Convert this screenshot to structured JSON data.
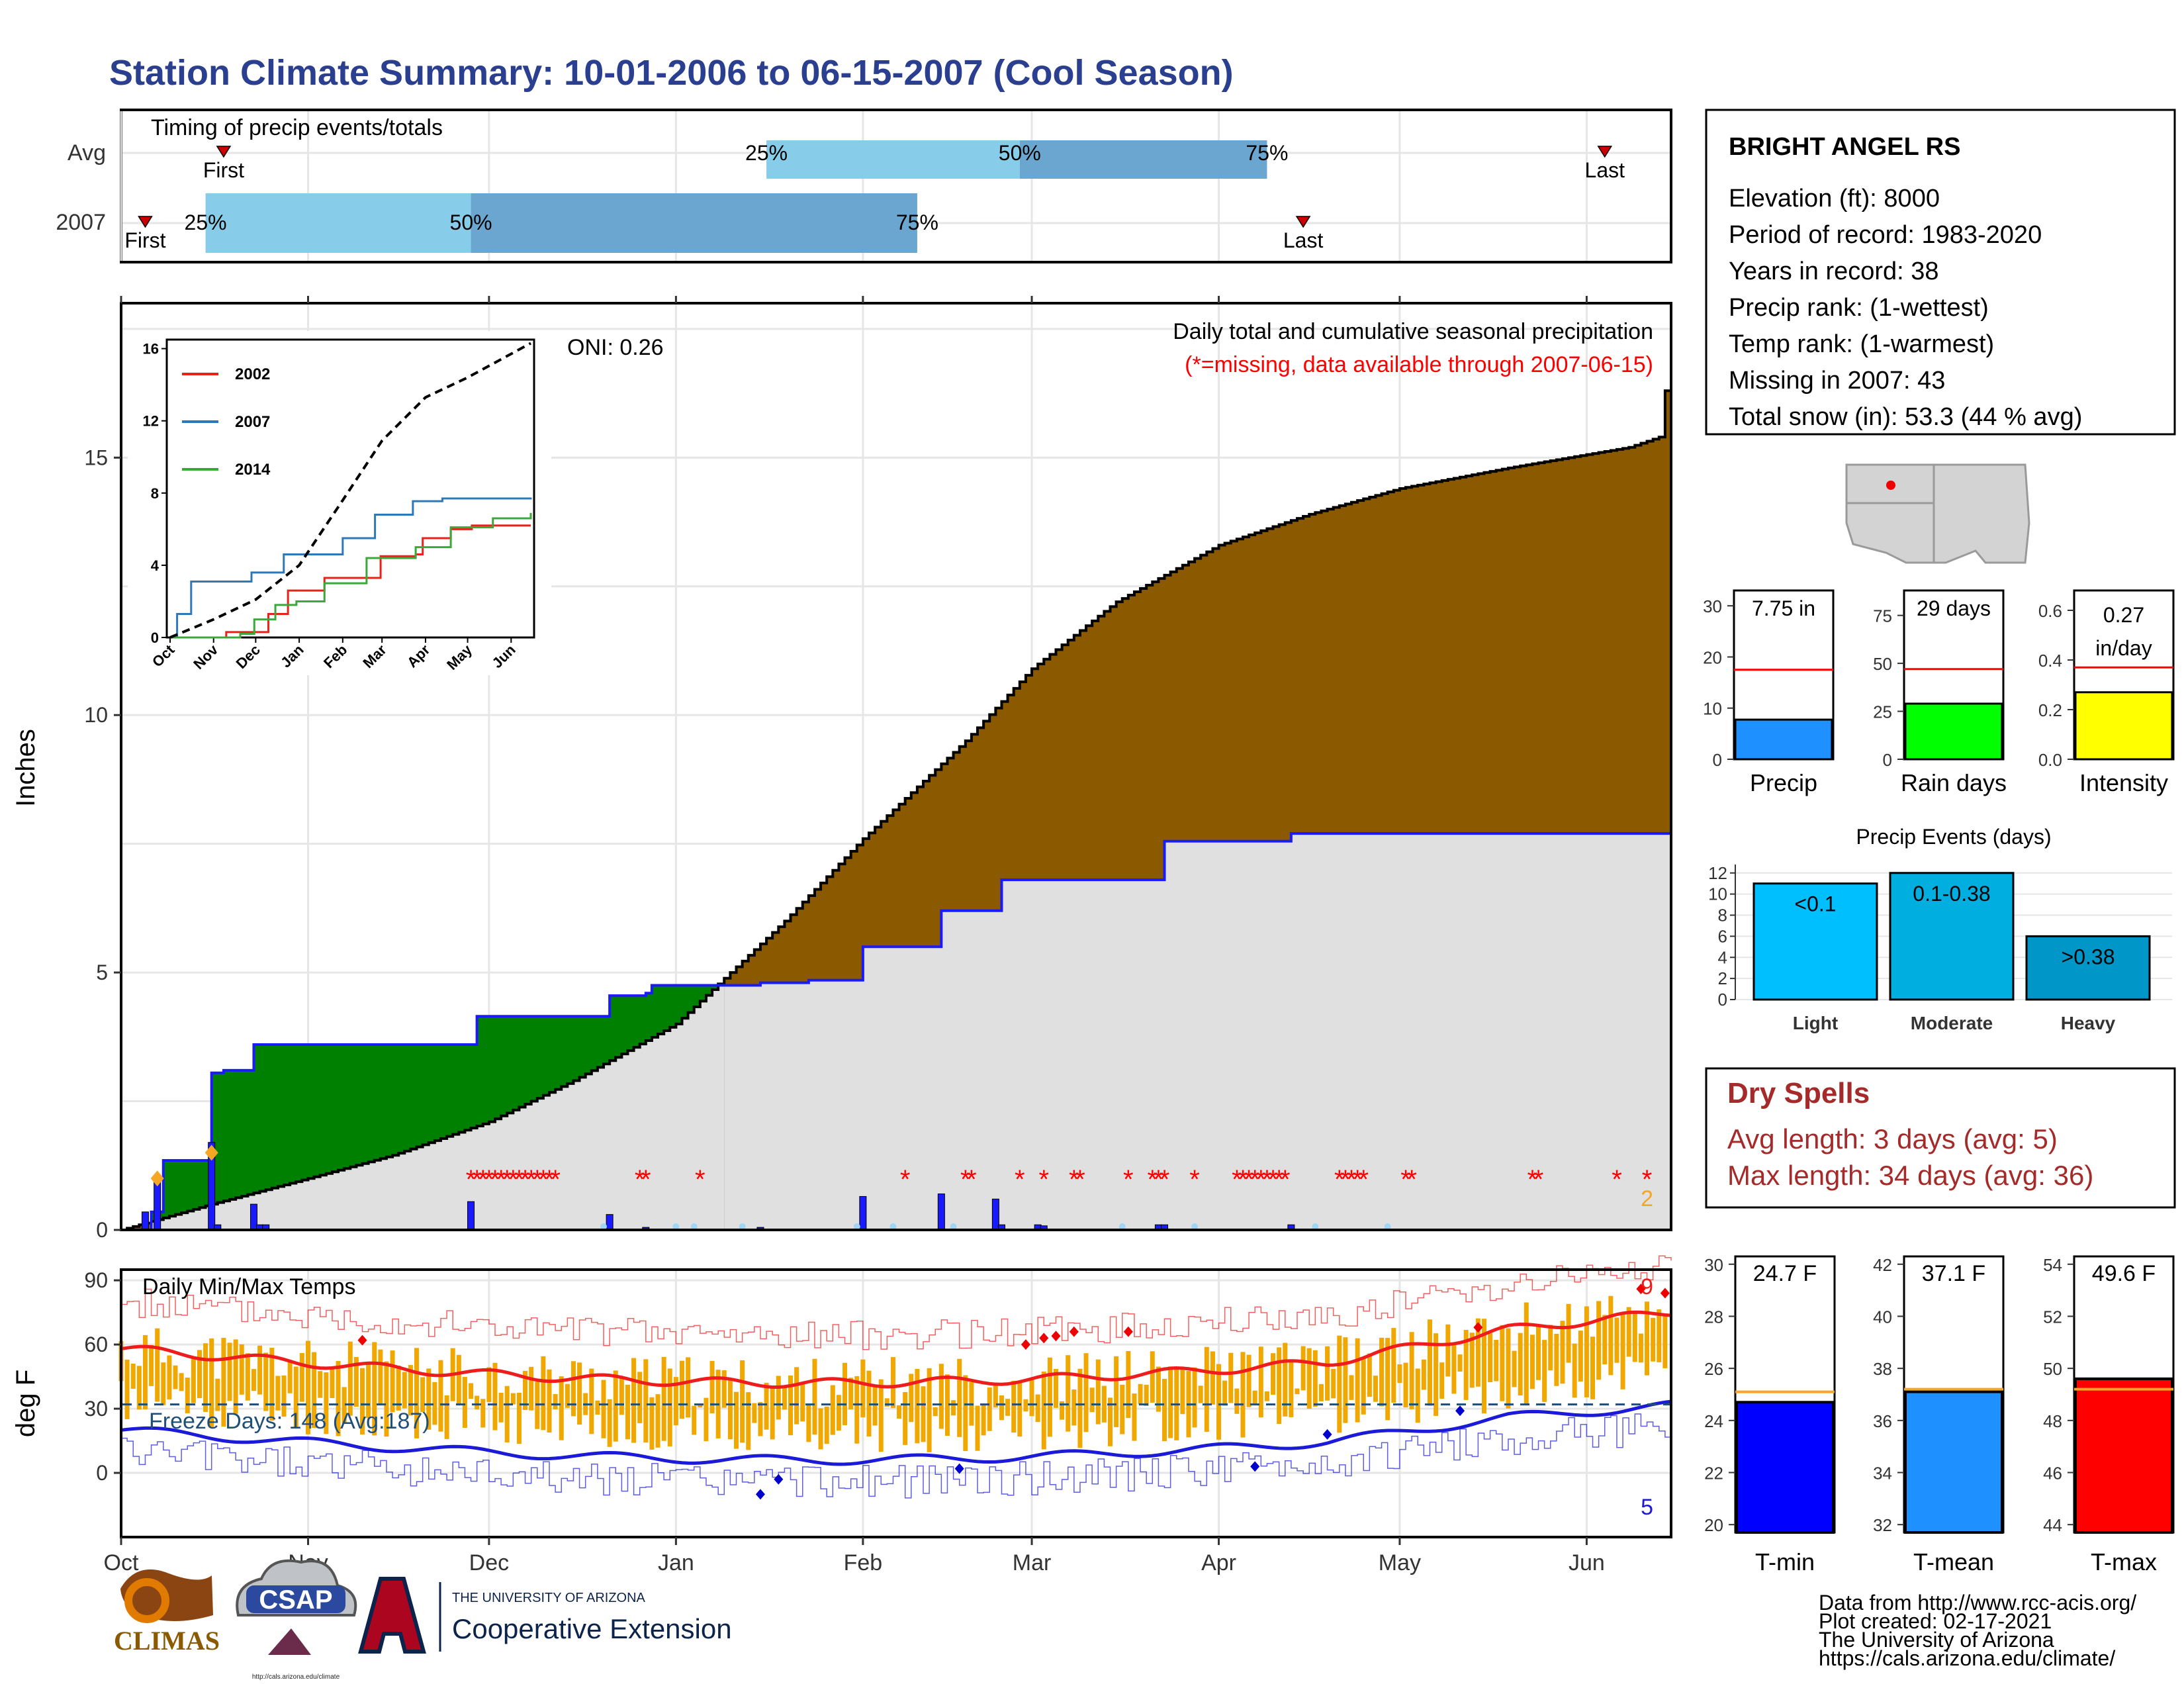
{
  "header": {
    "title": "Station Climate Summary: 10-01-2006 to 06-15-2007 (Cool Season)"
  },
  "timing": {
    "label": "Timing of precip events/totals",
    "rows": [
      {
        "name": "Avg",
        "first_day": 17,
        "q25_day": 107,
        "q50_day": 149,
        "q75_day": 190,
        "last_day": 246
      },
      {
        "name": "2007",
        "first_day": 4,
        "q25_day": 14,
        "q50_day": 58,
        "q75_day": 132,
        "last_day": 196
      }
    ],
    "first_label": "First",
    "last_label": "Last",
    "q_labels": [
      "25%",
      "50%",
      "75%"
    ],
    "colors": {
      "light": "#87cde9",
      "dark": "#6aa6cf",
      "marker": "#cc0000"
    }
  },
  "main_plot": {
    "ylabel": "Inches",
    "yticks": [
      0,
      5,
      10,
      15
    ],
    "ylim": [
      0,
      18
    ],
    "caption": "Daily total and cumulative seasonal precipitation",
    "missing_note": "(*=missing, data available through 2007-06-15)",
    "oni": "ONI: 0.26",
    "corner_value": "2",
    "xticks": [
      "Oct",
      "Nov",
      "Dec",
      "Jan",
      "Feb",
      "Mar",
      "Apr",
      "May",
      "Jun"
    ],
    "colors": {
      "avg_fill": "#8b5a00",
      "obs_fill": "#e0e0e0",
      "above_fill": "#008000",
      "obs_line": "#1a1aff",
      "missing": "#ff0000",
      "diamond": "#f5a623"
    }
  },
  "inset": {
    "yticks": [
      0,
      4,
      8,
      12,
      16
    ],
    "xticks": [
      "Oct",
      "Nov",
      "Dec",
      "Jan",
      "Feb",
      "Mar",
      "Apr",
      "May",
      "Jun"
    ],
    "legend": [
      {
        "name": "2002",
        "color": "#e8211b"
      },
      {
        "name": "2007",
        "color": "#2f78b7"
      },
      {
        "name": "2014",
        "color": "#3aa83a"
      }
    ]
  },
  "temps": {
    "label": "Daily Min/Max Temps",
    "ylabel": "deg F",
    "yticks": [
      0,
      30,
      60,
      90
    ],
    "freeze_label": "Freeze Days: 148 (Avg:187)",
    "top_count": "9",
    "bottom_count": "5",
    "colors": {
      "bar": "#f0a800",
      "max_line": "#ee1c1c",
      "min_line": "#1a1ad8",
      "freeze": "#1f4e79"
    }
  },
  "station": {
    "name": "BRIGHT ANGEL RS",
    "lines": [
      "Elevation (ft): 8000",
      "Period of record: 1983-2020",
      "Years in record: 38",
      "Precip rank:  (1-wettest)",
      "Temp rank:  (1-warmest)",
      "Missing in 2007: 43",
      "Total snow (in): 53.3 (44 % avg)"
    ]
  },
  "mini_bars": [
    {
      "label": "Precip",
      "value_text": "7.75 in",
      "value": 7.75,
      "avg": 17.5,
      "yticks": [
        "0",
        "10",
        "20",
        "30"
      ],
      "ymax": 33,
      "color": "#1e90ff"
    },
    {
      "label": "Rain days",
      "value_text": "29 days",
      "value": 29,
      "avg": 47,
      "yticks": [
        "0",
        "25",
        "50",
        "75"
      ],
      "ymax": 88,
      "color": "#00ff00"
    },
    {
      "label": "Intensity",
      "value_text": "0.27 in/day",
      "value_lines": [
        "0.27",
        "in/day"
      ],
      "value": 0.27,
      "avg": 0.37,
      "yticks": [
        "0.0",
        "0.2",
        "0.4",
        "0.6"
      ],
      "ymax": 0.68,
      "color": "#ffff00"
    }
  ],
  "precip_events": {
    "title": "Precip Events (days)",
    "yticks": [
      "0",
      "2",
      "4",
      "6",
      "8",
      "10",
      "12"
    ],
    "bars": [
      {
        "category": "Light",
        "label": "<0.1",
        "value": 11,
        "color": "#00bfff"
      },
      {
        "category": "Moderate",
        "label": "0.1-0.38",
        "value": 12,
        "color": "#00aee0"
      },
      {
        "category": "Heavy",
        "label": ">0.38",
        "value": 6,
        "color": "#0097c8"
      }
    ]
  },
  "dry_spells": {
    "title": "Dry Spells",
    "avg_line": "Avg length: 3 days (avg: 5)",
    "max_line": "Max length: 34 days (avg: 36)"
  },
  "temp_bars": [
    {
      "label": "T-min",
      "value_text": "24.7 F",
      "value": 24.7,
      "avg": 25.1,
      "yticks": [
        "20",
        "22",
        "24",
        "26",
        "28",
        "30"
      ],
      "ymin": 19.7,
      "ymax": 30.3,
      "color": "#0000ff"
    },
    {
      "label": "T-mean",
      "value_text": "37.1 F",
      "value": 37.1,
      "avg": 37.2,
      "yticks": [
        "32",
        "34",
        "36",
        "38",
        "40",
        "42"
      ],
      "ymin": 31.7,
      "ymax": 42.3,
      "color": "#1e90ff"
    },
    {
      "label": "T-max",
      "value_text": "49.6 F",
      "value": 49.6,
      "avg": 49.2,
      "yticks": [
        "44",
        "46",
        "48",
        "50",
        "52",
        "54"
      ],
      "ymin": 43.7,
      "ymax": 54.3,
      "color": "#ff0000"
    }
  ],
  "footer": {
    "credits": [
      "Data from http://www.rcc-acis.org/",
      "Plot created: 02-17-2021",
      "The University of Arizona",
      "https://cals.arizona.edu/climate/"
    ],
    "logos": {
      "climas": "CLIMAS",
      "csap": "CSAP",
      "csap_url": "http://cals.arizona.edu/climate",
      "ua_small": "THE UNIVERSITY OF ARIZONA",
      "ua_big": "Cooperative Extension"
    }
  }
}
